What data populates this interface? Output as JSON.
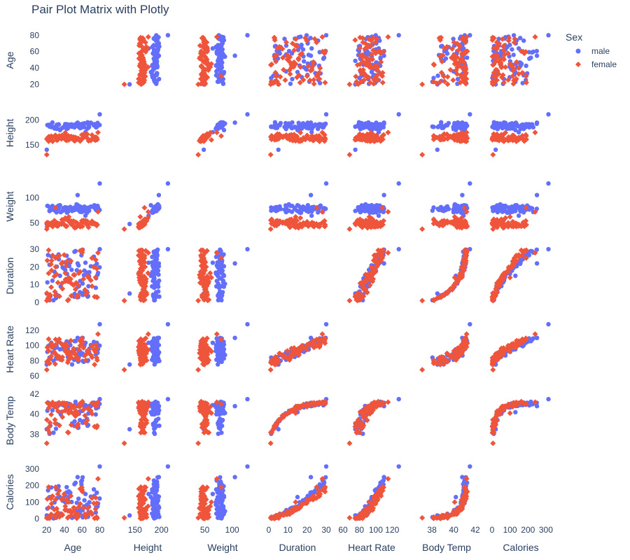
{
  "chart_data": {
    "type": "scatter",
    "title": "Pair Plot Matrix with Plotly",
    "variables": [
      {
        "label": "Age",
        "range": [
          17,
          82
        ],
        "ticks": [
          20,
          40,
          60,
          80
        ],
        "ytick_top_visible": true
      },
      {
        "label": "Height",
        "range": [
          120,
          228
        ],
        "ticks": [
          150,
          200
        ]
      },
      {
        "label": "Weight",
        "range": [
          30,
          135
        ],
        "ticks": [
          50,
          100
        ]
      },
      {
        "label": "Duration",
        "range": [
          0,
          30
        ],
        "ticks": [
          0,
          10,
          20,
          30
        ]
      },
      {
        "label": "Heart Rate",
        "range": [
          60,
          130
        ],
        "ticks": [
          60,
          80,
          100,
          120
        ]
      },
      {
        "label": "Body Temp",
        "range": [
          36.7,
          42
        ],
        "ticks": [
          38,
          40,
          42
        ]
      },
      {
        "label": "Calories",
        "range": [
          0,
          320
        ],
        "ticks": [
          0,
          100,
          200,
          300
        ]
      }
    ],
    "series": [
      {
        "name": "male",
        "color": "#636efa",
        "symbol": "circle",
        "samples": [
          {
            "Age": 80,
            "Height": 212,
            "Weight": 128,
            "Duration": 30,
            "Heart Rate": 128,
            "Body Temp": 41.5,
            "Calories": 314
          },
          {
            "Age": 20,
            "Height": 140,
            "Weight": 48,
            "Duration": 5,
            "Heart Rate": 75,
            "Body Temp": 38.5,
            "Calories": 20
          },
          {
            "Age": 55,
            "Height": 195,
            "Weight": 105,
            "Duration": 22,
            "Heart Rate": 110,
            "Body Temp": 40.8,
            "Calories": 250
          },
          {
            "Age": 35,
            "Height": 180,
            "Weight": 85,
            "Duration": 15,
            "Heart Rate": 95,
            "Body Temp": 40.2,
            "Calories": 130
          }
        ]
      },
      {
        "name": "female",
        "color": "#ef553b",
        "symbol": "diamond",
        "samples": [
          {
            "Age": 20,
            "Height": 130,
            "Weight": 38,
            "Duration": 1,
            "Heart Rate": 68,
            "Body Temp": 37.1,
            "Calories": 5
          },
          {
            "Age": 78,
            "Height": 175,
            "Weight": 72,
            "Duration": 28,
            "Heart Rate": 115,
            "Body Temp": 41.2,
            "Calories": 240
          },
          {
            "Age": 45,
            "Height": 160,
            "Weight": 62,
            "Duration": 14,
            "Heart Rate": 92,
            "Body Temp": 40.1,
            "Calories": 100
          },
          {
            "Age": 30,
            "Height": 168,
            "Weight": 80,
            "Duration": 25,
            "Heart Rate": 108,
            "Body Temp": 41.0,
            "Calories": 190
          }
        ]
      }
    ],
    "legend": {
      "title": "Sex",
      "position": "top-right"
    },
    "diagonal_visible": false,
    "grid": false
  }
}
